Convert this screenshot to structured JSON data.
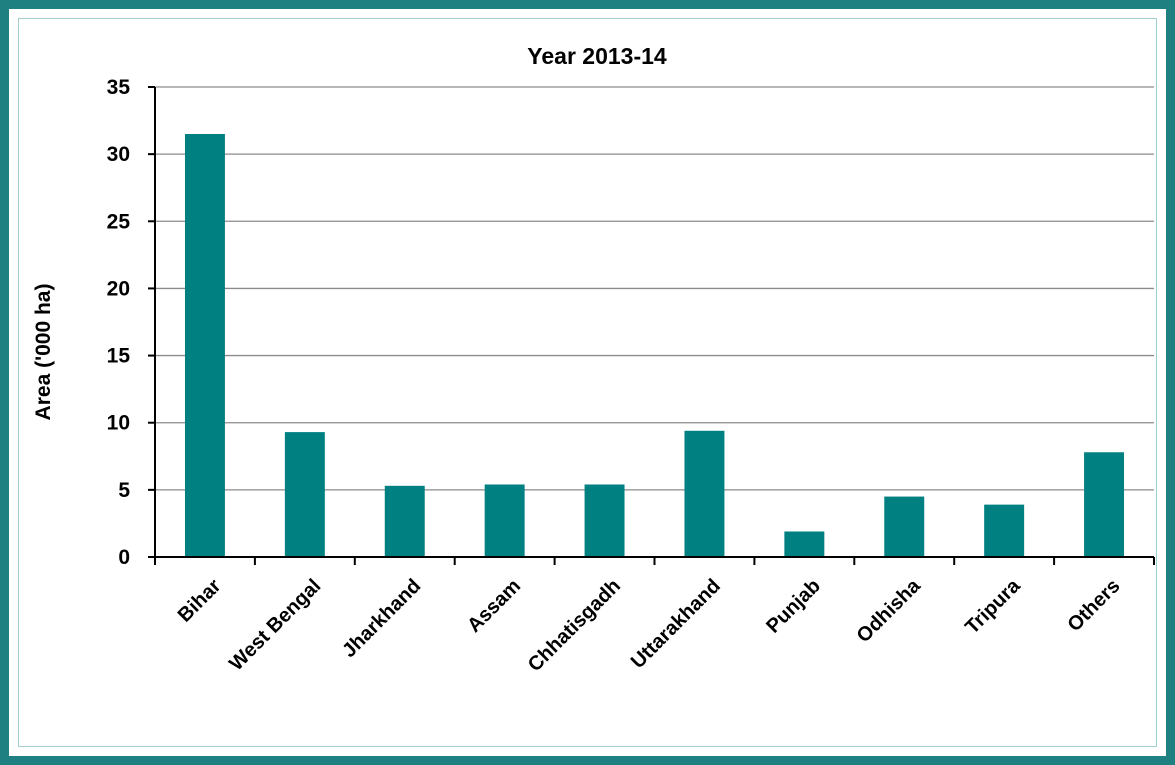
{
  "chart_data": {
    "type": "bar",
    "title": "Year 2013-14",
    "xlabel": "",
    "ylabel": "Area ('000 ha)",
    "categories": [
      "Bihar",
      "West Bengal",
      "Jharkhand",
      "Assam",
      "Chhatisgadh",
      "Uttarakhand",
      "Punjab",
      "Odhisha",
      "Tripura",
      "Others"
    ],
    "values": [
      31.5,
      9.3,
      5.3,
      5.4,
      5.4,
      9.4,
      1.9,
      4.5,
      3.9,
      7.8
    ],
    "ylim": [
      0,
      35
    ],
    "yticks": [
      0,
      5,
      10,
      15,
      20,
      25,
      30,
      35
    ],
    "grid": true,
    "legend": "none",
    "colors": {
      "bar": "#008080",
      "frame": "#1e8080",
      "grid": "#8c8c8c",
      "axis": "#000000"
    }
  }
}
